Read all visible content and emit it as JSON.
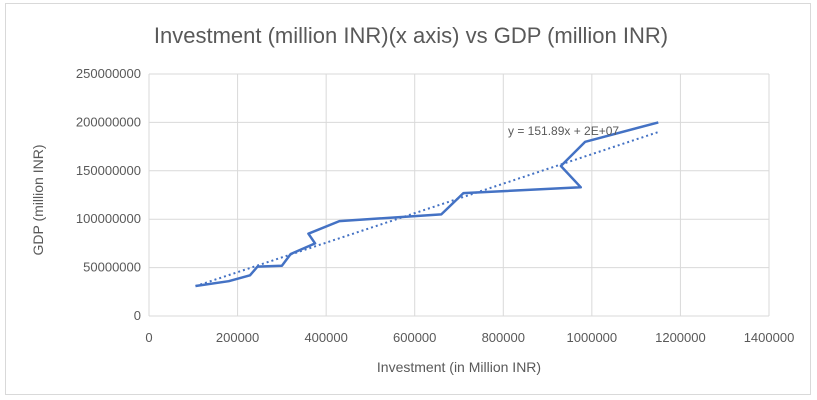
{
  "chart_data": {
    "type": "line",
    "title": "Investment (million INR)(x axis) vs GDP (million INR)",
    "xlabel": "Investment (in Million INR)",
    "ylabel": "GDP (million INR)",
    "xlim": [
      0,
      1400000
    ],
    "ylim": [
      0,
      250000000
    ],
    "x_ticks": [
      "0",
      "200000",
      "400000",
      "600000",
      "800000",
      "1000000",
      "1200000",
      "1400000"
    ],
    "y_ticks": [
      "0",
      "50000000",
      "100000000",
      "150000000",
      "200000000",
      "250000000"
    ],
    "grid": true,
    "legend": "none",
    "series": [
      {
        "color": "#4472c4",
        "x": [
          105000,
          180000,
          228000,
          245000,
          300000,
          320000,
          375000,
          360000,
          430000,
          660000,
          710000,
          975000,
          930000,
          985000,
          1150000
        ],
        "y": [
          31000000,
          36000000,
          42000000,
          51000000,
          52000000,
          64000000,
          75000000,
          85000000,
          98000000,
          105000000,
          127000000,
          133000000,
          155000000,
          180000000,
          200000000
        ]
      }
    ],
    "trendline": {
      "color": "#4472c4",
      "style": "dotted",
      "label": "y = 151.89x + 2E+07",
      "x_range": [
        105000,
        1150000
      ]
    }
  }
}
